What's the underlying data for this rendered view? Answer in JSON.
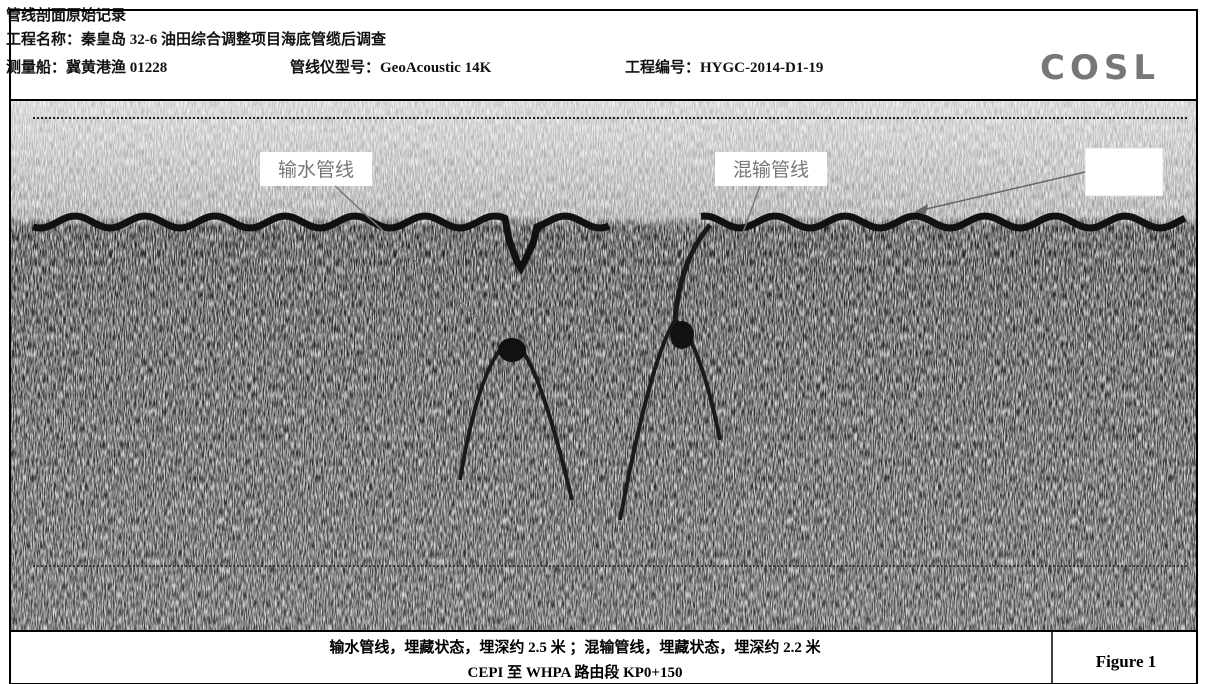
{
  "header": {
    "title": "管线剖面原始记录",
    "project": "工程名称：秦皇岛 32-6 油田综合调整项目海底管缆后调查",
    "vessel": "测量船：冀黄港渔 01228",
    "instrument": "管线仪型号：GeoAcoustic 14K",
    "project_no": "工程编号：HYGC-2014-D1-19",
    "logo": "COSL"
  },
  "annotations": {
    "left": "输水管线",
    "right": "混输管线"
  },
  "caption": {
    "line1": "输水管线，埋藏状态，埋深约 2.5 米 ；混输管线，埋藏状态，埋深约 2.2 米",
    "line2": "CEPI 至 WHPA 路由段 KP0+150",
    "figure": "Figure 1"
  }
}
